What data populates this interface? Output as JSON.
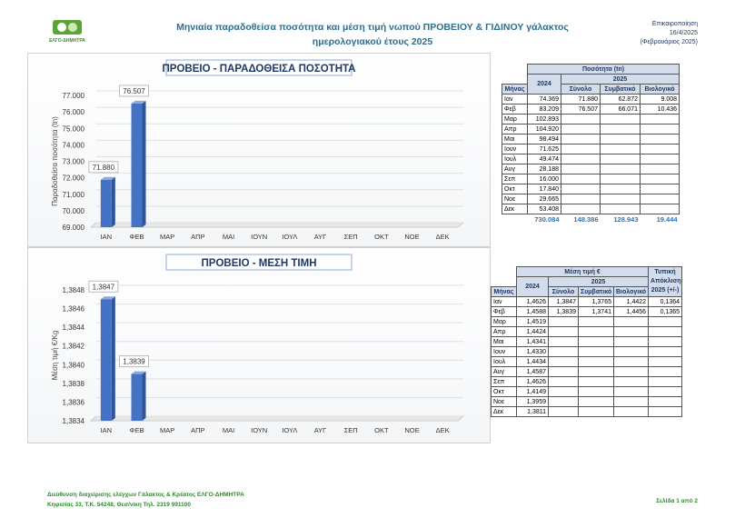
{
  "header": {
    "logo": "ΕΛΓΟ-ΔΗΜΗΤΡΑ",
    "title": [
      "Μηνιαία παραδοθείσα ποσότητα και μέση τιμή νωπού ΠΡΟΒΕΙΟΥ & ΓΙΔΙΝΟΥ γάλακτος",
      "ημερολογιακού έτους 2025"
    ],
    "update": [
      "Επικαιροποίηση",
      "16/4/2025",
      "(Φεβρουάριος 2025)"
    ]
  },
  "chart_data": [
    {
      "type": "bar",
      "title": "ΠΡΟΒΕΙΟ - ΠΑΡΑΔΟΘΕΙΣΑ ΠΟΣΟΤΗΤΑ",
      "y_label": "Παραδοθείσα ποσότητα (tn)",
      "categories": [
        "ΙΑΝ",
        "ΦΕΒ",
        "ΜΑΡ",
        "ΑΠΡ",
        "ΜΑΙ",
        "ΙΟΥΝ",
        "ΙΟΥΛ",
        "ΑΥΓ",
        "ΣΕΠ",
        "ΟΚΤ",
        "ΝΟΕ",
        "ΔΕΚ"
      ],
      "values": [
        71880,
        76507,
        null,
        null,
        null,
        null,
        null,
        null,
        null,
        null,
        null,
        null
      ],
      "value_labels": [
        "71.880",
        "76.507",
        null,
        null,
        null,
        null,
        null,
        null,
        null,
        null,
        null,
        null
      ],
      "color": "#4472c4",
      "ylim": [
        69000,
        77000
      ],
      "yticks": [
        {
          "value": 69000,
          "label": "69.000"
        },
        {
          "value": 70000,
          "label": "70.000"
        },
        {
          "value": 71000,
          "label": "71.000"
        },
        {
          "value": 72000,
          "label": "72.000"
        },
        {
          "value": 73000,
          "label": "73.000"
        },
        {
          "value": 74000,
          "label": "74.000"
        },
        {
          "value": 75000,
          "label": "75.000"
        },
        {
          "value": 76000,
          "label": "76.000"
        },
        {
          "value": 77000,
          "label": "77.000"
        }
      ],
      "grid": true
    },
    {
      "type": "bar",
      "title": "ΠΡΟΒΕΙΟ - ΜΕΣΗ ΤΙΜΗ",
      "y_label": "Μέση τιμή €/Kg",
      "categories": [
        "ΙΑΝ",
        "ΦΕΒ",
        "ΜΑΡ",
        "ΑΠΡ",
        "ΜΑΙ",
        "ΙΟΥΝ",
        "ΙΟΥΛ",
        "ΑΥΓ",
        "ΣΕΠ",
        "ΟΚΤ",
        "ΝΟΕ",
        "ΔΕΚ"
      ],
      "values": [
        1.3847,
        1.3839,
        null,
        null,
        null,
        null,
        null,
        null,
        null,
        null,
        null,
        null
      ],
      "value_labels": [
        "1,3847",
        "1,3839",
        null,
        null,
        null,
        null,
        null,
        null,
        null,
        null,
        null,
        null
      ],
      "color": "#4472c4",
      "ylim": [
        1.3834,
        1.3848
      ],
      "yticks": [
        {
          "value": 1.3834,
          "label": "1,3834"
        },
        {
          "value": 1.3836,
          "label": "1,3836"
        },
        {
          "value": 1.3838,
          "label": "1,3838"
        },
        {
          "value": 1.384,
          "label": "1,3840"
        },
        {
          "value": 1.3842,
          "label": "1,3842"
        },
        {
          "value": 1.3844,
          "label": "1,3844"
        },
        {
          "value": 1.3846,
          "label": "1,3846"
        },
        {
          "value": 1.3848,
          "label": "1,3848"
        }
      ],
      "grid": true
    }
  ],
  "tables": [
    {
      "group": "Ποσότητα (tn)",
      "year_prev": "2024",
      "year_cur": "2025",
      "columns": [
        "Μήνας",
        "Σύνολο",
        "Συμβατικό",
        "Βιολογικό"
      ],
      "rows": [
        [
          "Ιαν",
          "74.369",
          "71.880",
          "62.872",
          "9.008"
        ],
        [
          "Φεβ",
          "83.209",
          "76.507",
          "66.071",
          "10.436"
        ],
        [
          "Μαρ",
          "102.893"
        ],
        [
          "Απρ",
          "104.920"
        ],
        [
          "Μαι",
          "98.494"
        ],
        [
          "Ιουν",
          "71.625"
        ],
        [
          "Ιουλ",
          "49.474"
        ],
        [
          "Αυγ",
          "28.188"
        ],
        [
          "Σεπ",
          "16.000"
        ],
        [
          "Οκτ",
          "17.840"
        ],
        [
          "Νοε",
          "29.665"
        ],
        [
          "Δεκ",
          "53.408"
        ]
      ],
      "totals": [
        "730.084",
        "148.386",
        "128.943",
        "19.444"
      ]
    },
    {
      "group": "Μέση τιμή €",
      "year_prev": "2024",
      "year_cur": "2025",
      "deviation": "Τυπική Απόκλιση 2025 (+/-)",
      "columns": [
        "Μήνας",
        "Σύνολο",
        "Συμβατικό",
        "Βιολογικό"
      ],
      "rows": [
        [
          "Ιαν",
          "1,4626",
          "1,3847",
          "1,3765",
          "1,4422",
          "0,1364"
        ],
        [
          "Φεβ",
          "1,4588",
          "1,3839",
          "1,3741",
          "1,4456",
          "0,1365"
        ],
        [
          "Μαρ",
          "1,4519"
        ],
        [
          "Απρ",
          "1,4424"
        ],
        [
          "Μαι",
          "1,4341"
        ],
        [
          "Ιουν",
          "1,4330"
        ],
        [
          "Ιουλ",
          "1,4434"
        ],
        [
          "Αυγ",
          "1,4587"
        ],
        [
          "Σεπ",
          "1,4626"
        ],
        [
          "Οκτ",
          "1,4149"
        ],
        [
          "Νοε",
          "1,3959"
        ],
        [
          "Δεκ",
          "1,3811"
        ]
      ]
    }
  ],
  "footer": {
    "address": [
      "Διεύθυνση διαχείρισης ελέγχων Γάλακτος & Κρέατος ΕΛΓΟ-ΔΗΜΗΤΡΑ",
      "Κηφισίας 33, Τ.Κ. 54248, Θεσ/νίκη Τηλ. 2319 991100"
    ],
    "page": "Σελίδα 1 από 2"
  }
}
